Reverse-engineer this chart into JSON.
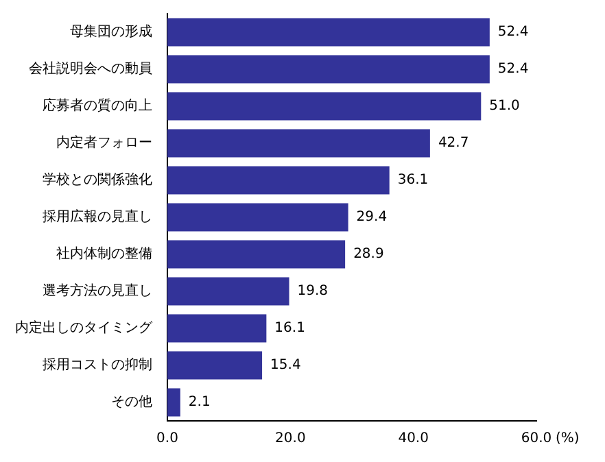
{
  "chart_data": {
    "type": "bar",
    "orientation": "horizontal",
    "xlabel": "(%)",
    "categories": [
      "母集団の形成",
      "会社説明会への動員",
      "応募者の質の向上",
      "内定者フォロー",
      "学校との関係強化",
      "採用広報の見直し",
      "社内体制の整備",
      "選考方法の見直し",
      "内定出しのタイミング",
      "採用コストの抑制",
      "その他"
    ],
    "values": [
      52.4,
      52.4,
      51.0,
      42.7,
      36.1,
      29.4,
      28.9,
      19.8,
      16.1,
      15.4,
      2.1
    ],
    "value_labels": [
      "52.4",
      "52.4",
      "51.0",
      "42.7",
      "36.1",
      "29.4",
      "28.9",
      "19.8",
      "16.1",
      "15.4",
      "2.1"
    ],
    "color": "#333399",
    "xlim": [
      0,
      60
    ],
    "xticks": [
      {
        "value": 0,
        "label": "0.0"
      },
      {
        "value": 20,
        "label": "20.0"
      },
      {
        "value": 40,
        "label": "40.0"
      },
      {
        "value": 60,
        "label": "60.0"
      }
    ],
    "grid": false,
    "legend": false
  }
}
